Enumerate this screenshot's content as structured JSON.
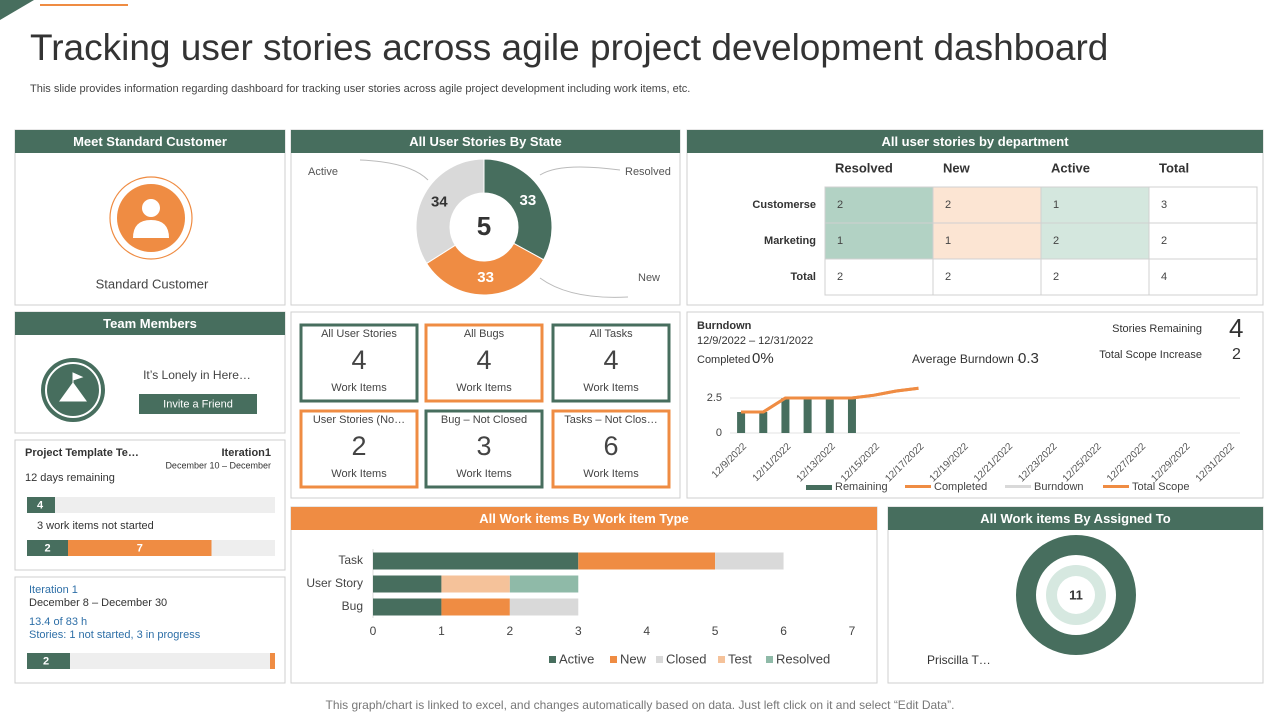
{
  "title": "Tracking user stories across agile project development dashboard",
  "subtitle": "This slide provides information regarding dashboard for tracking user stories across agile project development including work items, etc.",
  "footer": "This graph/chart is linked to excel, and changes automatically based on data. Just left click on it and select “Edit Data”.",
  "customer": {
    "title": "Meet Standard Customer",
    "name": "Standard Customer"
  },
  "state": {
    "type": "donut",
    "title": "All User Stories By State",
    "center": 5,
    "categories": [
      "Resolved",
      "New",
      "Active"
    ],
    "values": [
      33,
      33,
      34
    ],
    "colors": [
      "#476e5e",
      "#ef8c43",
      "#d9d9d9"
    ]
  },
  "department": {
    "title": "All user stories by department",
    "columns": [
      "Resolved",
      "New",
      "Active",
      "Total"
    ],
    "rows": [
      {
        "label": "Customerse",
        "values": [
          2,
          2,
          1,
          3
        ]
      },
      {
        "label": "Marketing",
        "values": [
          1,
          1,
          2,
          2
        ]
      },
      {
        "label": "Total",
        "values": [
          2,
          2,
          2,
          4
        ]
      }
    ]
  },
  "team": {
    "title": "Team Members",
    "message": "It’s Lonely in Here…",
    "button": "Invite a Friend"
  },
  "tiles": [
    {
      "title": "All User Stories",
      "value": 4,
      "unit": "Work Items",
      "color": "#476e5e"
    },
    {
      "title": "All Bugs",
      "value": 4,
      "unit": "Work Items",
      "color": "#ef8c43"
    },
    {
      "title": "All Tasks",
      "value": 4,
      "unit": "Work Items",
      "color": "#476e5e"
    },
    {
      "title": "User Stories (No…",
      "value": 2,
      "unit": "Work Items",
      "color": "#ef8c43"
    },
    {
      "title": "Bug – Not Closed",
      "value": 3,
      "unit": "Work Items",
      "color": "#476e5e"
    },
    {
      "title": "Tasks – Not Clos…",
      "value": 6,
      "unit": "Work Items",
      "color": "#ef8c43"
    }
  ],
  "burndown": {
    "type": "bar_line",
    "title": "Burndown",
    "range": "12/9/2022 – 12/31/2022",
    "completed_label": "Completed",
    "completed": "0%",
    "average_label": "Average Burndown -",
    "average": 0.3,
    "remaining_label": "Stories Remaining",
    "remaining": 4,
    "scope_label": "Total Scope Increase",
    "scope": 2,
    "categories": [
      "12/9/2022",
      null,
      "12/11/2022",
      null,
      "12/13/2022",
      null,
      "12/15/2022",
      null,
      "12/17/2022",
      null,
      "12/19/2022",
      null,
      "12/21/2022",
      null,
      "12/23/2022",
      null,
      "12/25/2022",
      null,
      "12/27/2022",
      null,
      "12/29/2022",
      null,
      "12/31/2022"
    ],
    "series": [
      {
        "name": "Remaining",
        "kind": "bar",
        "color": "#476e5e",
        "values": [
          1.5,
          1.5,
          2.5,
          2.5,
          2.5,
          2.5,
          null,
          null,
          null,
          null,
          null,
          null,
          null,
          null,
          null,
          null,
          null,
          null,
          null,
          null,
          null,
          null,
          null
        ]
      },
      {
        "name": "Completed",
        "kind": "line",
        "color": "#ef8c43",
        "values": [
          1.5,
          1.5,
          2.5,
          2.5,
          2.5,
          2.5,
          2.7,
          3,
          3.2,
          null,
          null,
          null,
          null,
          null,
          null,
          null,
          null,
          null,
          null,
          null,
          null,
          null,
          null
        ]
      },
      {
        "name": "Burndown",
        "kind": "line",
        "color": "#d9d9d9",
        "values": [
          null,
          null,
          null,
          null,
          null,
          null,
          null,
          null,
          null,
          null,
          null,
          null,
          null,
          null,
          null,
          null,
          null,
          null,
          null,
          null,
          null,
          null,
          null
        ]
      },
      {
        "name": "Total Scope",
        "kind": "line",
        "color": "#ef8c43",
        "values": [
          1.5,
          1.5,
          2.5,
          2.5,
          2.5,
          2.5,
          2.7,
          3,
          3.2,
          null,
          null,
          null,
          null,
          null,
          null,
          null,
          null,
          null,
          null,
          null,
          null,
          null,
          null
        ]
      }
    ],
    "ylim": [
      0,
      4
    ],
    "yticks": [
      0,
      2.5
    ]
  },
  "project": {
    "name": "Project Template Te…",
    "iteration": "Iteration1",
    "dates": "December 10 – December",
    "remaining_text": "12 days remaining",
    "progress": 4,
    "not_started": "3 work items not started",
    "breakdown": [
      2,
      7
    ],
    "colors": [
      "#476e5e",
      "#ef8c43"
    ]
  },
  "iteration": {
    "name": "Iteration 1",
    "dates": "December 8 – December 30",
    "hours": "13.4 of 83 h",
    "stories": "Stories: 1 not started, 3 in progress",
    "progress": 2
  },
  "work_items": {
    "type": "bar",
    "orientation": "horizontal",
    "title": "All Work items By Work item Type",
    "categories": [
      "Task",
      "User Story",
      "Bug"
    ],
    "series": [
      {
        "name": "Active",
        "color": "#476e5e",
        "values": [
          3,
          1,
          1
        ]
      },
      {
        "name": "New",
        "color": "#ef8c43",
        "values": [
          2,
          0,
          1
        ]
      },
      {
        "name": "Closed",
        "color": "#d9d9d9",
        "values": [
          1,
          0,
          1
        ]
      },
      {
        "name": "Test",
        "color": "#f5c29a",
        "values": [
          0,
          1,
          0
        ]
      },
      {
        "name": "Resolved",
        "color": "#8fbaa8",
        "values": [
          0,
          1,
          0
        ]
      }
    ],
    "xlim": [
      0,
      7
    ],
    "xticks": [
      0,
      1,
      2,
      3,
      4,
      5,
      6,
      7
    ]
  },
  "assigned": {
    "type": "donut",
    "title": "All Work items By Assigned To",
    "center": 11,
    "categories": [
      "Priscilla T…"
    ],
    "values": [
      11
    ],
    "color": "#476e5e"
  }
}
